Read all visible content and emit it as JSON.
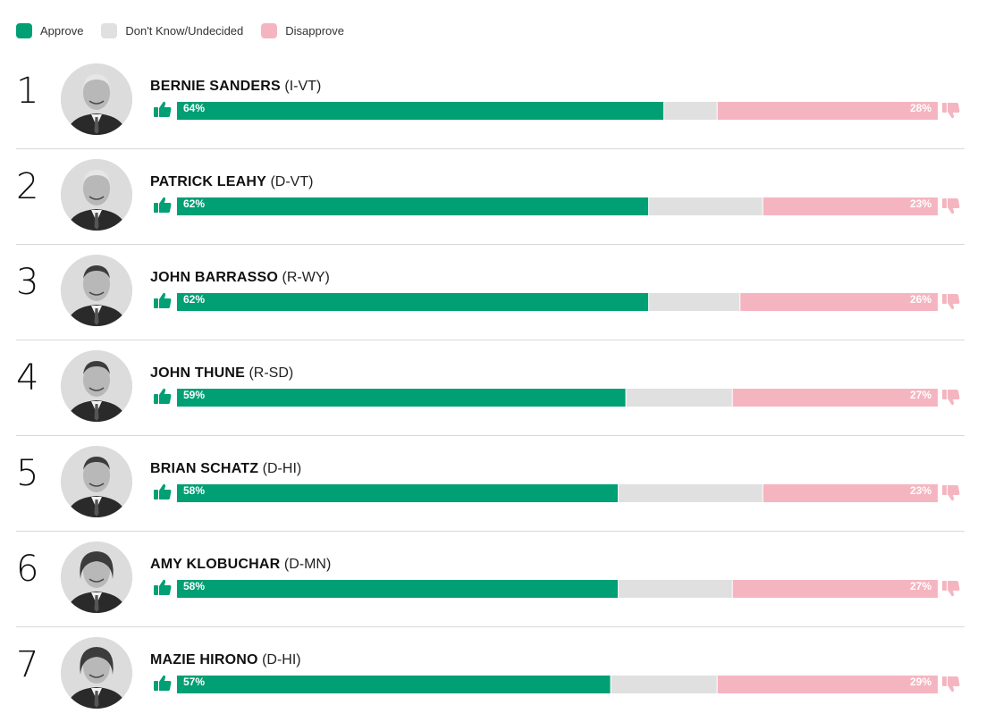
{
  "legend": {
    "approve": "Approve",
    "undecided": "Don't Know/Undecided",
    "disapprove": "Disapprove"
  },
  "colors": {
    "approve": "#009f74",
    "undecided": "#e0e0e0",
    "disapprove": "#f5b5c0"
  },
  "icons": {
    "approve": "thumbs-up-icon",
    "disapprove": "thumbs-down-icon"
  },
  "chart_data": {
    "type": "bar",
    "stacked": true,
    "orientation": "horizontal",
    "xlim": [
      0,
      100
    ],
    "legend_position": "top-left",
    "series_names": [
      "Approve",
      "Don't Know/Undecided",
      "Disapprove"
    ],
    "rows": [
      {
        "rank": "1",
        "name": "BERNIE SANDERS",
        "party": "(I-VT)",
        "approve": 64,
        "undecided": 7,
        "disapprove": 28,
        "approve_label": "64%",
        "disapprove_label": "28%"
      },
      {
        "rank": "2",
        "name": "PATRICK LEAHY",
        "party": "(D-VT)",
        "approve": 62,
        "undecided": 15,
        "disapprove": 23,
        "approve_label": "62%",
        "disapprove_label": "23%"
      },
      {
        "rank": "3",
        "name": "JOHN BARRASSO",
        "party": "(R-WY)",
        "approve": 62,
        "undecided": 12,
        "disapprove": 26,
        "approve_label": "62%",
        "disapprove_label": "26%"
      },
      {
        "rank": "4",
        "name": "JOHN THUNE",
        "party": "(R-SD)",
        "approve": 59,
        "undecided": 14,
        "disapprove": 27,
        "approve_label": "59%",
        "disapprove_label": "27%"
      },
      {
        "rank": "5",
        "name": "BRIAN SCHATZ",
        "party": "(D-HI)",
        "approve": 58,
        "undecided": 19,
        "disapprove": 23,
        "approve_label": "58%",
        "disapprove_label": "23%"
      },
      {
        "rank": "6",
        "name": "AMY KLOBUCHAR",
        "party": "(D-MN)",
        "approve": 58,
        "undecided": 15,
        "disapprove": 27,
        "approve_label": "58%",
        "disapprove_label": "27%"
      },
      {
        "rank": "7",
        "name": "MAZIE HIRONO",
        "party": "(D-HI)",
        "approve": 57,
        "undecided": 14,
        "disapprove": 29,
        "approve_label": "57%",
        "disapprove_label": "29%"
      }
    ]
  }
}
